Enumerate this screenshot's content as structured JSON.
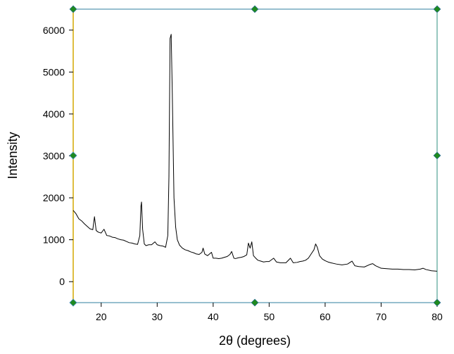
{
  "chart_data": {
    "type": "line",
    "xlabel": "2θ (degrees)",
    "ylabel": "Intensity",
    "xlim": [
      15,
      80
    ],
    "ylim": [
      -500,
      6500
    ],
    "xticks": [
      20,
      30,
      40,
      50,
      60,
      70,
      80
    ],
    "yticks": [
      0,
      1000,
      2000,
      3000,
      4000,
      5000,
      6000
    ],
    "color": "#000000",
    "x": [
      15,
      15.5,
      16,
      16.5,
      17,
      17.5,
      18,
      18.5,
      18.8,
      19.1,
      19.5,
      20,
      20.5,
      21,
      21.5,
      22,
      22.5,
      23,
      23.5,
      24,
      24.5,
      25,
      25.5,
      26,
      26.5,
      26.9,
      27.1,
      27.2,
      27.4,
      27.7,
      28,
      28.5,
      29,
      29.6,
      30,
      30.5,
      31,
      31.5,
      31.9,
      32.1,
      32.3,
      32.5,
      32.7,
      33,
      33.3,
      33.6,
      34,
      34.5,
      35,
      35.5,
      36,
      36.5,
      37,
      37.5,
      38,
      38.2,
      38.5,
      39,
      39.7,
      40,
      40.5,
      41,
      41.5,
      42,
      42.5,
      43,
      43.3,
      43.7,
      44,
      44.5,
      45,
      45.5,
      46,
      46.3,
      46.6,
      46.9,
      47.2,
      47.6,
      48,
      48.5,
      49,
      49.5,
      50,
      50.8,
      51.3,
      52,
      52.5,
      53,
      53.8,
      54.3,
      55,
      55.5,
      56,
      56.5,
      57,
      57.5,
      58,
      58.3,
      58.6,
      59,
      59.5,
      60,
      60.5,
      61,
      62,
      63,
      64,
      64.8,
      65.3,
      66,
      67,
      68,
      68.5,
      69,
      70,
      71,
      72,
      73,
      74,
      75,
      76,
      77,
      77.5,
      78,
      79,
      80
    ],
    "values": [
      1700,
      1620,
      1500,
      1450,
      1380,
      1320,
      1260,
      1240,
      1550,
      1220,
      1180,
      1160,
      1250,
      1100,
      1090,
      1060,
      1050,
      1020,
      1000,
      990,
      960,
      930,
      920,
      900,
      890,
      1100,
      1800,
      1900,
      1250,
      900,
      860,
      880,
      880,
      950,
      880,
      860,
      850,
      820,
      1100,
      2500,
      5800,
      5900,
      4500,
      2000,
      1300,
      1000,
      870,
      800,
      760,
      740,
      710,
      690,
      660,
      650,
      700,
      800,
      660,
      620,
      700,
      560,
      560,
      550,
      560,
      580,
      600,
      650,
      720,
      560,
      550,
      570,
      580,
      600,
      640,
      920,
      800,
      950,
      620,
      560,
      510,
      490,
      470,
      480,
      480,
      560,
      470,
      450,
      450,
      450,
      560,
      450,
      460,
      480,
      490,
      510,
      560,
      660,
      760,
      900,
      820,
      620,
      540,
      500,
      470,
      450,
      420,
      400,
      420,
      490,
      380,
      360,
      350,
      410,
      430,
      380,
      320,
      310,
      300,
      300,
      290,
      290,
      280,
      300,
      320,
      290,
      260,
      250
    ]
  }
}
